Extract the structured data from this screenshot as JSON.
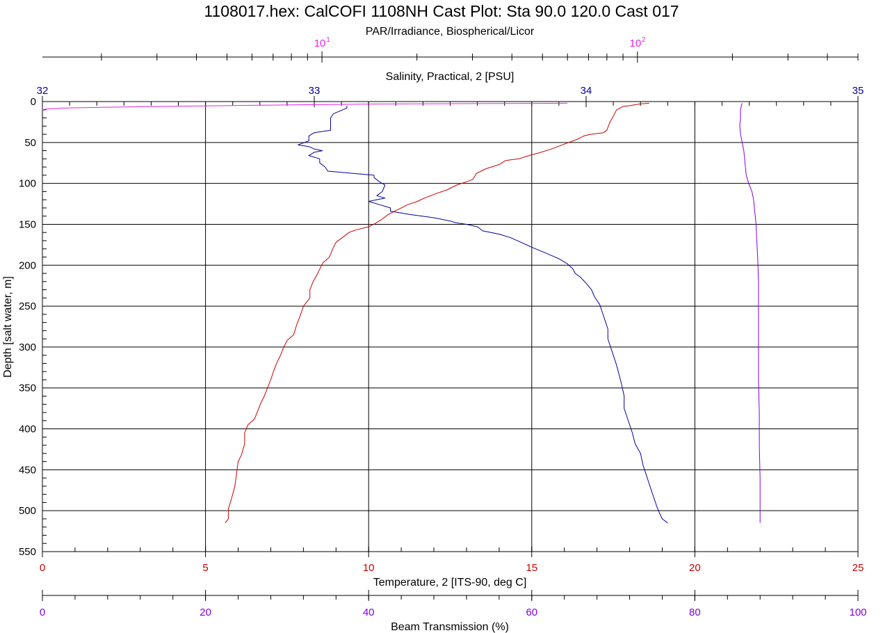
{
  "title": "1108017.hex: CalCOFI 1108NH Cast Plot: Sta 90.0 120.0 Cast 017",
  "colors": {
    "par": "#e91ee9",
    "salinity": "#00009b",
    "temperature": "#c80000",
    "beam": "#7f00e6",
    "grid": "#000000",
    "depth_axis": "#000000"
  },
  "axes": {
    "depth": {
      "label": "Depth [salt water, m]",
      "range": [
        0,
        550
      ],
      "ticks": [
        "0",
        "50",
        "100",
        "150",
        "200",
        "250",
        "300",
        "350",
        "400",
        "450",
        "500",
        "550"
      ]
    },
    "par": {
      "label": "PAR/Irradiance, Biospherical/Licor",
      "scale": "log",
      "range": [
        1.3,
        500
      ],
      "ticks": [
        "10",
        "10"
      ],
      "tick_exponents": [
        "1",
        "2"
      ]
    },
    "salinity": {
      "label": "Salinity, Practical, 2 [PSU]",
      "range": [
        32,
        35
      ],
      "ticks": [
        "32",
        "33",
        "34",
        "35"
      ]
    },
    "temperature": {
      "label": "Temperature, 2 [ITS-90, deg C]",
      "range": [
        0,
        25
      ],
      "ticks": [
        "0",
        "5",
        "10",
        "15",
        "20",
        "25"
      ]
    },
    "beam": {
      "label": "Beam Transmission (%)",
      "range": [
        0,
        100
      ],
      "ticks": [
        "0",
        "20",
        "40",
        "60",
        "80",
        "100"
      ]
    }
  },
  "chart_data": {
    "type": "line",
    "title": "1108017.hex: CalCOFI 1108NH Cast Plot: Sta 90.0 120.0 Cast 017",
    "ylabel": "Depth [salt water, m]",
    "ylim": [
      550,
      0
    ],
    "grid": true,
    "series": [
      {
        "name": "Temperature, 2 [ITS-90, deg C]",
        "x_axis": "temperature",
        "points": [
          [
            18.6,
            2
          ],
          [
            18.3,
            3
          ],
          [
            18.0,
            5
          ],
          [
            17.8,
            6
          ],
          [
            17.6,
            10
          ],
          [
            17.5,
            18
          ],
          [
            17.4,
            25
          ],
          [
            17.3,
            35
          ],
          [
            17.2,
            38
          ],
          [
            16.8,
            40
          ],
          [
            16.6,
            42
          ],
          [
            16.4,
            46
          ],
          [
            16.0,
            52
          ],
          [
            15.8,
            55
          ],
          [
            15.6,
            58
          ],
          [
            15.2,
            63
          ],
          [
            15.0,
            65
          ],
          [
            14.6,
            70
          ],
          [
            14.2,
            72
          ],
          [
            14.0,
            77
          ],
          [
            13.6,
            82
          ],
          [
            13.3,
            88
          ],
          [
            13.2,
            95
          ],
          [
            13.0,
            98
          ],
          [
            12.7,
            102
          ],
          [
            12.4,
            108
          ],
          [
            12.1,
            112
          ],
          [
            11.7,
            118
          ],
          [
            11.5,
            122
          ],
          [
            11.2,
            126
          ],
          [
            11.0,
            130
          ],
          [
            10.8,
            134
          ],
          [
            10.6,
            138
          ],
          [
            10.4,
            144
          ],
          [
            10.2,
            149
          ],
          [
            10.0,
            153
          ],
          [
            9.6,
            157
          ],
          [
            9.4,
            160
          ],
          [
            9.2,
            166
          ],
          [
            9.0,
            172
          ],
          [
            8.9,
            180
          ],
          [
            8.8,
            190
          ],
          [
            8.6,
            197
          ],
          [
            8.5,
            205
          ],
          [
            8.4,
            213
          ],
          [
            8.3,
            220
          ],
          [
            8.2,
            230
          ],
          [
            8.2,
            240
          ],
          [
            8.0,
            250
          ],
          [
            7.9,
            262
          ],
          [
            7.8,
            272
          ],
          [
            7.7,
            285
          ],
          [
            7.5,
            292
          ],
          [
            7.4,
            300
          ],
          [
            7.3,
            310
          ],
          [
            7.2,
            318
          ],
          [
            7.1,
            328
          ],
          [
            7.0,
            340
          ],
          [
            6.9,
            350
          ],
          [
            6.8,
            360
          ],
          [
            6.7,
            368
          ],
          [
            6.6,
            378
          ],
          [
            6.5,
            388
          ],
          [
            6.3,
            395
          ],
          [
            6.2,
            405
          ],
          [
            6.2,
            418
          ],
          [
            6.1,
            432
          ],
          [
            6.0,
            440
          ],
          [
            5.95,
            455
          ],
          [
            5.9,
            470
          ],
          [
            5.8,
            485
          ],
          [
            5.7,
            498
          ],
          [
            5.7,
            510
          ],
          [
            5.6,
            515
          ]
        ]
      },
      {
        "name": "Salinity, Practical, 2 [PSU]",
        "x_axis": "salinity",
        "points": [
          [
            33.12,
            5
          ],
          [
            33.12,
            8
          ],
          [
            33.07,
            15
          ],
          [
            33.06,
            20
          ],
          [
            33.06,
            25
          ],
          [
            33.06,
            35
          ],
          [
            33.0,
            38
          ],
          [
            32.98,
            42
          ],
          [
            32.98,
            48
          ],
          [
            32.94,
            53
          ],
          [
            32.98,
            55
          ],
          [
            33.0,
            58
          ],
          [
            33.03,
            60
          ],
          [
            33.0,
            62
          ],
          [
            32.98,
            66
          ],
          [
            33.02,
            70
          ],
          [
            33.02,
            75
          ],
          [
            33.04,
            80
          ],
          [
            33.05,
            85
          ],
          [
            33.15,
            88
          ],
          [
            33.22,
            90
          ],
          [
            33.22,
            93
          ],
          [
            33.24,
            98
          ],
          [
            33.26,
            102
          ],
          [
            33.25,
            110
          ],
          [
            33.23,
            115
          ],
          [
            33.26,
            118
          ],
          [
            33.2,
            122
          ],
          [
            33.24,
            126
          ],
          [
            33.28,
            130
          ],
          [
            33.28,
            134
          ],
          [
            33.35,
            138
          ],
          [
            33.44,
            142
          ],
          [
            33.5,
            146
          ],
          [
            33.52,
            148
          ],
          [
            33.56,
            150
          ],
          [
            33.6,
            153
          ],
          [
            33.62,
            158
          ],
          [
            33.68,
            162
          ],
          [
            33.72,
            166
          ],
          [
            33.76,
            172
          ],
          [
            33.8,
            178
          ],
          [
            33.85,
            185
          ],
          [
            33.9,
            192
          ],
          [
            33.93,
            198
          ],
          [
            33.95,
            204
          ],
          [
            33.96,
            210
          ],
          [
            33.98,
            215
          ],
          [
            34.0,
            222
          ],
          [
            34.02,
            230
          ],
          [
            34.03,
            238
          ],
          [
            34.05,
            248
          ],
          [
            34.06,
            258
          ],
          [
            34.07,
            268
          ],
          [
            34.08,
            278
          ],
          [
            34.08,
            290
          ],
          [
            34.09,
            300
          ],
          [
            34.1,
            310
          ],
          [
            34.11,
            320
          ],
          [
            34.12,
            332
          ],
          [
            34.13,
            345
          ],
          [
            34.14,
            360
          ],
          [
            34.14,
            375
          ],
          [
            34.15,
            385
          ],
          [
            34.16,
            395
          ],
          [
            34.17,
            405
          ],
          [
            34.18,
            418
          ],
          [
            34.2,
            430
          ],
          [
            34.21,
            445
          ],
          [
            34.22,
            455
          ],
          [
            34.23,
            465
          ],
          [
            34.24,
            475
          ],
          [
            34.25,
            485
          ],
          [
            34.26,
            495
          ],
          [
            34.27,
            503
          ],
          [
            34.28,
            510
          ],
          [
            34.3,
            515
          ]
        ]
      },
      {
        "name": "PAR/Irradiance, Biospherical/Licor",
        "x_axis": "par",
        "points": [
          [
            60,
            2
          ],
          [
            30,
            2.5
          ],
          [
            15,
            3
          ],
          [
            8,
            4
          ],
          [
            5,
            5
          ],
          [
            3,
            6
          ],
          [
            2,
            7
          ],
          [
            1.5,
            8
          ],
          [
            1.35,
            9
          ],
          [
            1.3,
            10
          ],
          [
            1.32,
            11
          ]
        ]
      },
      {
        "name": "Beam Transmission (%)",
        "x_axis": "beam",
        "points": [
          [
            85.8,
            2
          ],
          [
            85.7,
            5
          ],
          [
            85.6,
            10
          ],
          [
            85.6,
            20
          ],
          [
            85.5,
            30
          ],
          [
            85.6,
            40
          ],
          [
            85.8,
            50
          ],
          [
            86.0,
            60
          ],
          [
            86.1,
            70
          ],
          [
            86.2,
            80
          ],
          [
            86.3,
            90
          ],
          [
            86.6,
            100
          ],
          [
            87.0,
            110
          ],
          [
            87.2,
            120
          ],
          [
            87.3,
            130
          ],
          [
            87.4,
            140
          ],
          [
            87.5,
            150
          ],
          [
            87.6,
            170
          ],
          [
            87.7,
            190
          ],
          [
            87.8,
            220
          ],
          [
            87.8,
            260
          ],
          [
            87.8,
            300
          ],
          [
            87.8,
            340
          ],
          [
            87.9,
            380
          ],
          [
            87.9,
            420
          ],
          [
            88.0,
            460
          ],
          [
            88.0,
            500
          ],
          [
            88.0,
            515
          ]
        ]
      }
    ]
  }
}
